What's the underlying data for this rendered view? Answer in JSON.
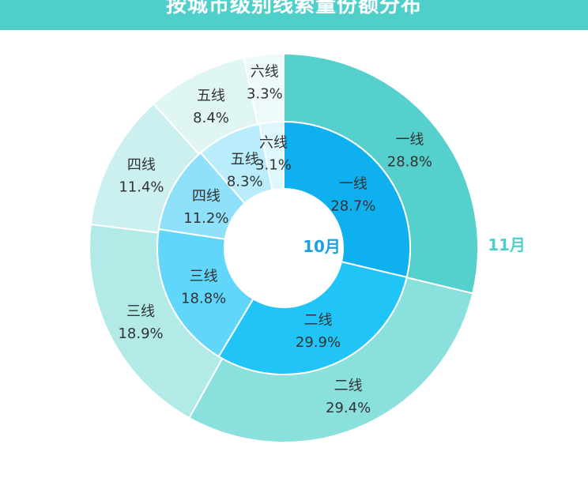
{
  "header": {
    "title": "按城市级别线索量份额分布"
  },
  "chart_data": {
    "type": "pie",
    "rings": [
      {
        "name": "10月",
        "label_color": "#1e9fe0",
        "categories": [
          "一线",
          "二线",
          "三线",
          "四线",
          "五线",
          "六线"
        ],
        "values": [
          28.7,
          29.9,
          18.8,
          11.2,
          8.3,
          3.1
        ],
        "labels": [
          "28.7%",
          "29.9%",
          "18.8%",
          "11.2%",
          "8.3%",
          "3.1%"
        ],
        "colors": [
          "#0fb0ef",
          "#21c4f7",
          "#61d6fb",
          "#8fe1fb",
          "#b9edfc",
          "#def7fd"
        ]
      },
      {
        "name": "11月",
        "label_color": "#4fcfca",
        "categories": [
          "一线",
          "二线",
          "三线",
          "四线",
          "五线",
          "六线"
        ],
        "values": [
          28.8,
          29.4,
          18.9,
          11.4,
          8.4,
          3.3
        ],
        "labels": [
          "28.8%",
          "29.4%",
          "18.9%",
          "11.4%",
          "8.4%",
          "3.3%"
        ],
        "colors": [
          "#55d0cc",
          "#8ae0dd",
          "#b2eae8",
          "#ccf0ef",
          "#dff6f5",
          "#eefafa"
        ]
      }
    ]
  }
}
